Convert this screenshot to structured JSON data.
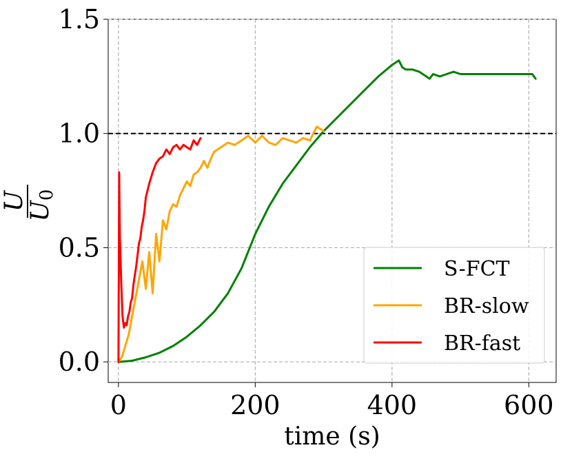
{
  "chart_data": {
    "type": "line",
    "xlabel": "time (s)",
    "ylabel": {
      "numerator": "U",
      "denominator_base": "U",
      "denominator_sub": "0"
    },
    "xlim": [
      -15,
      640
    ],
    "ylim": [
      -0.09,
      1.5
    ],
    "xticks": [
      0,
      200,
      400,
      600
    ],
    "xtick_labels": [
      "0",
      "200",
      "400",
      "600"
    ],
    "yticks": [
      0.0,
      0.5,
      1.0,
      1.5
    ],
    "ytick_labels": [
      "0.0",
      "0.5",
      "1.0",
      "1.5"
    ],
    "grid": true,
    "reference_line": {
      "y": 1.0,
      "color": "#000000",
      "style": "dashed"
    },
    "legend": {
      "placement": "lower-right"
    },
    "series": [
      {
        "name": "S-FCT",
        "color": "#008000",
        "x": [
          0,
          20,
          40,
          60,
          80,
          100,
          120,
          140,
          160,
          180,
          200,
          220,
          240,
          260,
          280,
          300,
          320,
          340,
          360,
          380,
          400,
          410,
          415,
          420,
          430,
          440,
          450,
          455,
          460,
          470,
          480,
          490,
          500,
          520,
          540,
          560,
          580,
          600,
          605,
          610
        ],
        "y": [
          0.0,
          0.005,
          0.02,
          0.04,
          0.07,
          0.11,
          0.16,
          0.22,
          0.3,
          0.41,
          0.56,
          0.68,
          0.78,
          0.86,
          0.94,
          1.01,
          1.07,
          1.13,
          1.19,
          1.25,
          1.3,
          1.32,
          1.29,
          1.28,
          1.28,
          1.27,
          1.25,
          1.24,
          1.26,
          1.25,
          1.26,
          1.27,
          1.26,
          1.26,
          1.26,
          1.26,
          1.26,
          1.26,
          1.26,
          1.24
        ]
      },
      {
        "name": "BR-slow",
        "color": "#FFA500",
        "x": [
          0,
          5,
          10,
          15,
          20,
          25,
          30,
          35,
          40,
          45,
          50,
          55,
          60,
          65,
          70,
          75,
          80,
          85,
          90,
          95,
          100,
          105,
          110,
          115,
          120,
          125,
          130,
          135,
          140,
          150,
          160,
          170,
          180,
          190,
          200,
          210,
          220,
          230,
          240,
          250,
          260,
          270,
          280,
          290,
          300
        ],
        "y": [
          0.0,
          0.02,
          0.07,
          0.12,
          0.2,
          0.28,
          0.36,
          0.44,
          0.32,
          0.48,
          0.3,
          0.56,
          0.44,
          0.62,
          0.58,
          0.66,
          0.69,
          0.68,
          0.73,
          0.76,
          0.79,
          0.77,
          0.82,
          0.83,
          0.85,
          0.88,
          0.85,
          0.89,
          0.92,
          0.94,
          0.96,
          0.95,
          0.97,
          0.99,
          0.96,
          0.99,
          0.96,
          0.95,
          0.98,
          0.97,
          0.96,
          0.98,
          0.97,
          1.03,
          1.01
        ]
      },
      {
        "name": "BR-fast",
        "color": "#FF0000",
        "x": [
          0,
          1,
          2,
          4,
          6,
          8,
          10,
          12,
          14,
          16,
          18,
          20,
          22,
          24,
          26,
          28,
          30,
          32,
          34,
          36,
          38,
          40,
          45,
          50,
          55,
          60,
          65,
          70,
          75,
          80,
          85,
          90,
          95,
          100,
          105,
          110,
          115,
          120
        ],
        "y": [
          0.0,
          0.83,
          0.55,
          0.35,
          0.2,
          0.15,
          0.17,
          0.16,
          0.2,
          0.22,
          0.26,
          0.28,
          0.34,
          0.38,
          0.42,
          0.47,
          0.52,
          0.54,
          0.59,
          0.62,
          0.66,
          0.72,
          0.78,
          0.83,
          0.87,
          0.89,
          0.9,
          0.93,
          0.91,
          0.94,
          0.95,
          0.93,
          0.95,
          0.94,
          0.93,
          0.97,
          0.95,
          0.98
        ]
      }
    ]
  }
}
